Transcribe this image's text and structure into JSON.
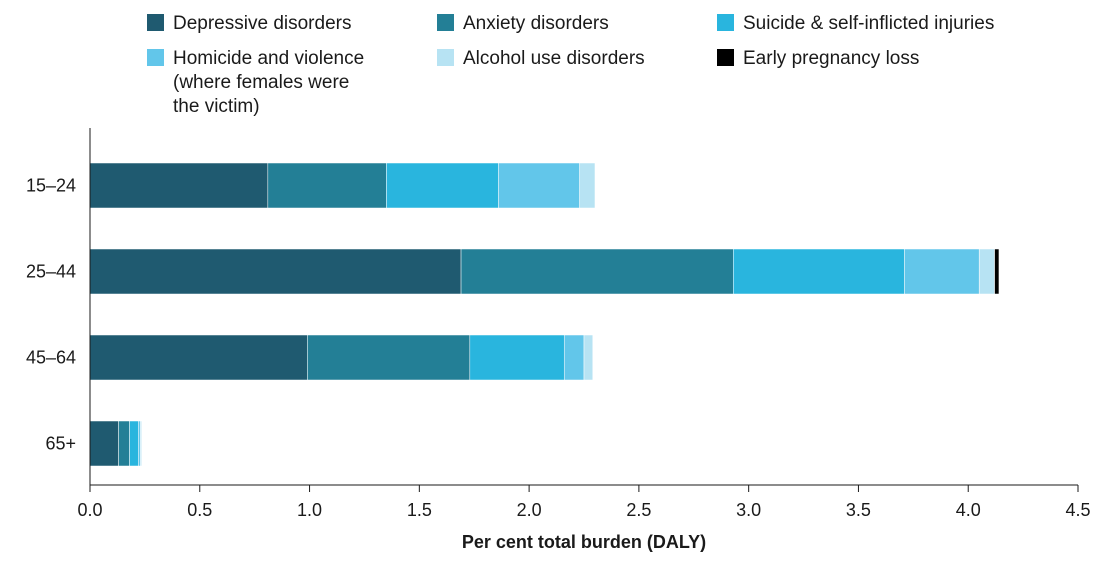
{
  "chart_data": {
    "type": "bar",
    "orientation": "horizontal",
    "stacked": true,
    "categories": [
      "15–24",
      "25–44",
      "45–64",
      "65+"
    ],
    "series": [
      {
        "name": "Depressive disorders",
        "color": "#1f5a70",
        "values": [
          0.81,
          1.69,
          0.99,
          0.13
        ]
      },
      {
        "name": "Anxiety disorders",
        "color": "#237f96",
        "values": [
          0.54,
          1.24,
          0.74,
          0.05
        ]
      },
      {
        "name": "Suicide & self-inflicted injuries",
        "color": "#29b5de",
        "values": [
          0.51,
          0.78,
          0.43,
          0.04
        ]
      },
      {
        "name": "Homicide and violence\n(where females were\nthe victim)",
        "color": "#62c6ea",
        "values": [
          0.37,
          0.34,
          0.09,
          0.01
        ]
      },
      {
        "name": "Alcohol use disorders",
        "color": "#b7e3f3",
        "values": [
          0.07,
          0.07,
          0.04,
          0.005
        ]
      },
      {
        "name": "Early pregnancy loss",
        "color": "#000000",
        "values": [
          0.0,
          0.02,
          0.0,
          0.0
        ]
      }
    ],
    "xlabel": "Per cent total burden (DALY)",
    "ylabel": "",
    "xlim": [
      0,
      4.5
    ],
    "xticks": [
      "0.0",
      "0.5",
      "1.0",
      "1.5",
      "2.0",
      "2.5",
      "3.0",
      "3.5",
      "4.0",
      "4.5"
    ],
    "grid": false,
    "legend_position": "top"
  }
}
